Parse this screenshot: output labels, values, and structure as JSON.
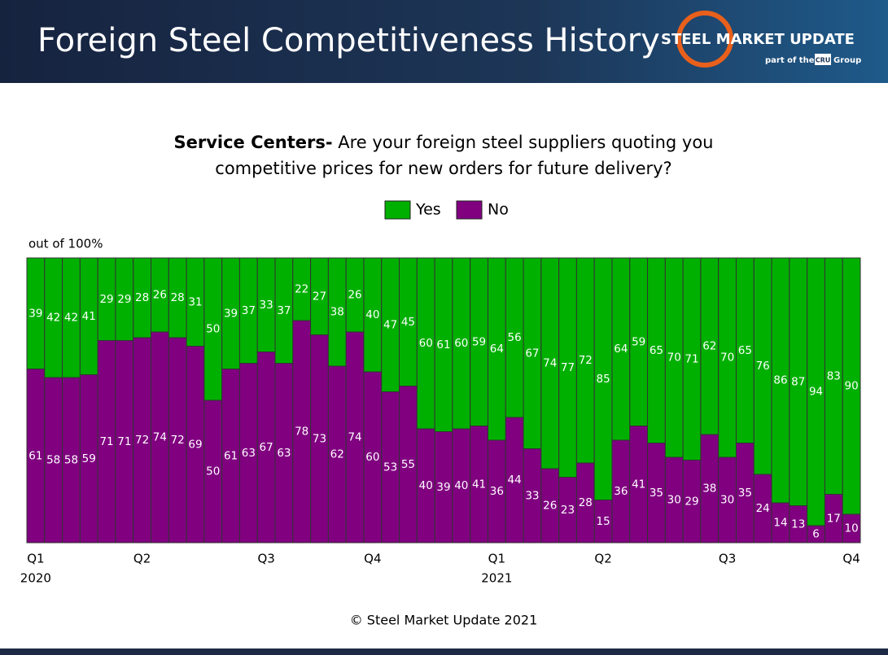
{
  "header": {
    "title": "Foreign Steel Competitiveness History",
    "logo": "STEEL MARKET UPDATE",
    "logo_sub": "part of the",
    "logo_cru": "CRU",
    "logo_group": "Group"
  },
  "chart_data": {
    "type": "stacked_bar",
    "title_bold": "Service Centers-",
    "title": "Are your foreign steel suppliers quoting you",
    "title_line2": "competitive prices for new orders for future delivery?",
    "y_label": "out of 100%",
    "categories": [
      "Q1",
      null,
      null,
      null,
      null,
      null,
      "Q2",
      null,
      null,
      null,
      null,
      null,
      null,
      "Q3",
      null,
      null,
      null,
      null,
      null,
      "Q4",
      null,
      null,
      null,
      null,
      null,
      null,
      "Q1",
      null,
      null,
      null,
      null,
      null,
      "Q2",
      null,
      null,
      null,
      null,
      null,
      null,
      "Q3",
      null,
      null,
      null,
      null,
      null,
      null,
      "Q4"
    ],
    "category_years": [
      "2020",
      null,
      null,
      null,
      null,
      null,
      null,
      null,
      null,
      null,
      null,
      null,
      null,
      null,
      null,
      null,
      null,
      null,
      null,
      null,
      null,
      null,
      null,
      null,
      null,
      null,
      "2021",
      null,
      null,
      null,
      null,
      null,
      null,
      null,
      null,
      null,
      null,
      null,
      null,
      null,
      null,
      null,
      null,
      null,
      null,
      null,
      null
    ],
    "ylim": [
      0,
      100
    ],
    "series": [
      {
        "name": "Yes",
        "color": "#00b000",
        "values": [
          39,
          42,
          42,
          41,
          29,
          29,
          28,
          26,
          28,
          31,
          50,
          39,
          37,
          33,
          37,
          22,
          27,
          38,
          26,
          40,
          47,
          45,
          60,
          61,
          60,
          59,
          64,
          56,
          67,
          74,
          77,
          72,
          85,
          64,
          59,
          65,
          70,
          71,
          62,
          70,
          65,
          76,
          86,
          87,
          94,
          83,
          90
        ]
      },
      {
        "name": "No",
        "color": "#800080",
        "values": [
          61,
          58,
          58,
          59,
          71,
          71,
          72,
          74,
          72,
          69,
          50,
          61,
          63,
          67,
          63,
          78,
          73,
          62,
          74,
          60,
          53,
          55,
          40,
          39,
          40,
          41,
          36,
          44,
          33,
          26,
          23,
          28,
          15,
          36,
          41,
          35,
          30,
          29,
          38,
          30,
          35,
          24,
          14,
          13,
          6,
          17,
          10
        ]
      }
    ],
    "footer": "© Steel Market Update 2021"
  }
}
